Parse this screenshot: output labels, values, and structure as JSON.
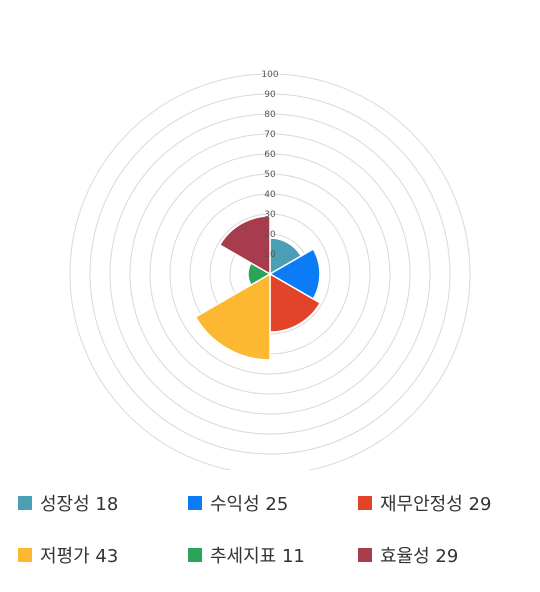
{
  "chart_data": {
    "type": "polar-area",
    "title": "",
    "rlim": [
      0,
      100
    ],
    "r_ticks": [
      "10",
      "20",
      "30",
      "40",
      "50",
      "60",
      "70",
      "80",
      "90",
      "100"
    ],
    "grid": true,
    "legend_position": "bottom",
    "categories": [
      "성장성",
      "수익성",
      "재무안정성",
      "저평가",
      "추세지표",
      "효율성"
    ],
    "values": [
      18,
      25,
      29,
      43,
      11,
      29
    ],
    "colors": [
      "#4a9fb4",
      "#0b7cf5",
      "#e2442a",
      "#fbb830",
      "#2ca35a",
      "#a63c4c"
    ]
  },
  "legend": [
    {
      "label": "성장성",
      "value": "18",
      "color": "#4a9fb4"
    },
    {
      "label": "수익성",
      "value": "25",
      "color": "#0b7cf5"
    },
    {
      "label": "재무안정성",
      "value": "29",
      "color": "#e2442a"
    },
    {
      "label": "저평가",
      "value": "43",
      "color": "#fbb830"
    },
    {
      "label": "추세지표",
      "value": "11",
      "color": "#2ca35a"
    },
    {
      "label": "효율성",
      "value": "29",
      "color": "#a63c4c"
    }
  ]
}
